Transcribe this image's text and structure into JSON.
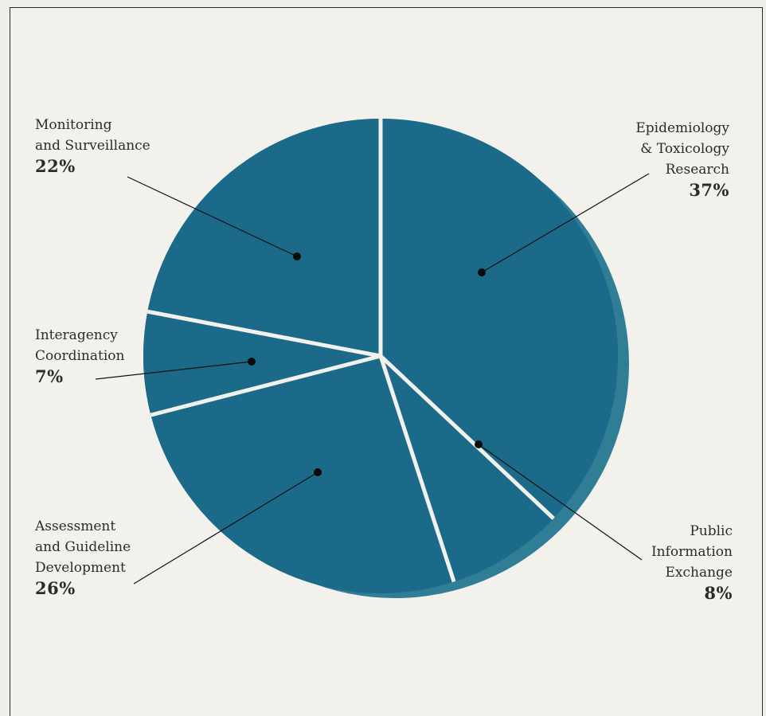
{
  "chart_data": {
    "type": "pie",
    "title": "",
    "slices": [
      {
        "name": "Epidemiology & Toxicology Research",
        "lines": [
          "Epidemiology",
          "& Toxicology",
          "Research"
        ],
        "value": 37,
        "label": "37%"
      },
      {
        "name": "Public Information Exchange",
        "lines": [
          "Public",
          "Information",
          "Exchange"
        ],
        "value": 8,
        "label": "8%"
      },
      {
        "name": "Assessment and Guideline Development",
        "lines": [
          "Assessment",
          "and Guideline",
          "Development"
        ],
        "value": 26,
        "label": "26%"
      },
      {
        "name": "Interagency Coordination",
        "lines": [
          "Interagency",
          "Coordination"
        ],
        "value": 7,
        "label": "7%"
      },
      {
        "name": "Monitoring and Surveillance",
        "lines": [
          "Monitoring",
          "and Surveillance"
        ],
        "value": 22,
        "label": "22%"
      }
    ],
    "slice_color": "#1b6a8a",
    "shadow_color": "#2f7e96",
    "separator_color": "#f3f1ec"
  }
}
